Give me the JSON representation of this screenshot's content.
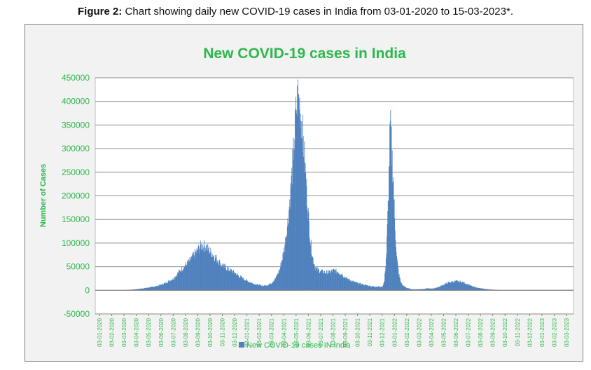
{
  "caption": {
    "label": "Figure 2:",
    "text": "Chart showing daily new COVID-19 cases in India from 03-01-2020 to 15-03-2023*."
  },
  "chart_data": {
    "type": "area",
    "title": "New COVID-19 cases in India",
    "xlabel": "",
    "ylabel": "Number of Cases",
    "ylim": [
      -50000,
      450000
    ],
    "yticks": [
      -50000,
      0,
      50000,
      100000,
      150000,
      200000,
      250000,
      300000,
      350000,
      400000,
      450000
    ],
    "ytick_labels": [
      "-50000",
      "0",
      "50000",
      "100000",
      "150000",
      "200000",
      "250000",
      "300000",
      "350000",
      "400000",
      "450000"
    ],
    "grid": true,
    "legend_position": "bottom",
    "xticklabels": [
      "03-01-2020",
      "03-02-2020",
      "03-03-2020",
      "03-04-2020",
      "03-05-2020",
      "03-06-2020",
      "03-07-2020",
      "03-08-2020",
      "03-09-2020",
      "03-10-2020",
      "03-11-2020",
      "03-12-2020",
      "03-01-2021",
      "03-02-2021",
      "03-03-2021",
      "03-04-2021",
      "03-05-2021",
      "03-06-2021",
      "03-07-2021",
      "03-08-2021",
      "03-09-2021",
      "03-10-2021",
      "03-11-2021",
      "03-12-2021",
      "03-01-2022",
      "03-02-2022",
      "03-03-2022",
      "03-04-2022",
      "03-05-2022",
      "03-06-2022",
      "03-07-2022",
      "03-08-2022",
      "03-09-2022",
      "03-10-2022",
      "03-11-2022",
      "03-12-2022",
      "03-01-2023",
      "03-02-2023",
      "03-03-2023"
    ],
    "series": [
      {
        "name": "New COVID-19 cases IN India",
        "color": "#4f81bd",
        "anchor_points": [
          [
            0,
            0
          ],
          [
            60,
            0
          ],
          [
            90,
            1500
          ],
          [
            120,
            4500
          ],
          [
            150,
            9000
          ],
          [
            170,
            15000
          ],
          [
            190,
            25000
          ],
          [
            210,
            45000
          ],
          [
            230,
            62000
          ],
          [
            245,
            80000
          ],
          [
            255,
            92000
          ],
          [
            262,
            96000
          ],
          [
            270,
            92000
          ],
          [
            280,
            82000
          ],
          [
            290,
            72000
          ],
          [
            300,
            62000
          ],
          [
            310,
            52000
          ],
          [
            320,
            47000
          ],
          [
            330,
            42000
          ],
          [
            340,
            37000
          ],
          [
            350,
            30000
          ],
          [
            360,
            25000
          ],
          [
            370,
            20000
          ],
          [
            380,
            16000
          ],
          [
            390,
            13000
          ],
          [
            400,
            11000
          ],
          [
            410,
            9500
          ],
          [
            420,
            11000
          ],
          [
            430,
            16000
          ],
          [
            440,
            26000
          ],
          [
            450,
            45000
          ],
          [
            460,
            85000
          ],
          [
            470,
            150000
          ],
          [
            478,
            230000
          ],
          [
            484,
            300000
          ],
          [
            488,
            360000
          ],
          [
            491,
            395000
          ],
          [
            494,
            412000
          ],
          [
            497,
            400000
          ],
          [
            500,
            380000
          ],
          [
            505,
            340000
          ],
          [
            510,
            280000
          ],
          [
            515,
            215000
          ],
          [
            520,
            150000
          ],
          [
            525,
            100000
          ],
          [
            530,
            70000
          ],
          [
            535,
            52000
          ],
          [
            540,
            44000
          ],
          [
            550,
            40000
          ],
          [
            560,
            38000
          ],
          [
            570,
            38000
          ],
          [
            580,
            42000
          ],
          [
            590,
            40000
          ],
          [
            600,
            35000
          ],
          [
            610,
            27000
          ],
          [
            620,
            22000
          ],
          [
            630,
            18000
          ],
          [
            640,
            15000
          ],
          [
            650,
            13000
          ],
          [
            660,
            11000
          ],
          [
            670,
            9000
          ],
          [
            680,
            8000
          ],
          [
            690,
            8000
          ],
          [
            700,
            7000
          ],
          [
            705,
            20000
          ],
          [
            710,
            80000
          ],
          [
            714,
            180000
          ],
          [
            717,
            280000
          ],
          [
            719,
            345000
          ],
          [
            721,
            330000
          ],
          [
            723,
            290000
          ],
          [
            726,
            250000
          ],
          [
            730,
            150000
          ],
          [
            735,
            70000
          ],
          [
            740,
            35000
          ],
          [
            745,
            17000
          ],
          [
            750,
            10000
          ],
          [
            760,
            5000
          ],
          [
            770,
            2500
          ],
          [
            780,
            2000
          ],
          [
            790,
            2500
          ],
          [
            800,
            3000
          ],
          [
            810,
            4000
          ],
          [
            820,
            3500
          ],
          [
            830,
            5000
          ],
          [
            840,
            8000
          ],
          [
            850,
            12000
          ],
          [
            860,
            16000
          ],
          [
            870,
            18000
          ],
          [
            880,
            19000
          ],
          [
            890,
            18000
          ],
          [
            900,
            16000
          ],
          [
            910,
            12000
          ],
          [
            920,
            8000
          ],
          [
            930,
            6000
          ],
          [
            940,
            4000
          ],
          [
            950,
            3000
          ],
          [
            960,
            2000
          ],
          [
            970,
            1500
          ],
          [
            980,
            800
          ],
          [
            990,
            400
          ],
          [
            1000,
            300
          ],
          [
            1010,
            200
          ],
          [
            1020,
            200
          ],
          [
            1030,
            250
          ],
          [
            1040,
            400
          ],
          [
            1050,
            500
          ],
          [
            1058,
            600
          ],
          [
            1167,
            700
          ]
        ]
      }
    ]
  }
}
